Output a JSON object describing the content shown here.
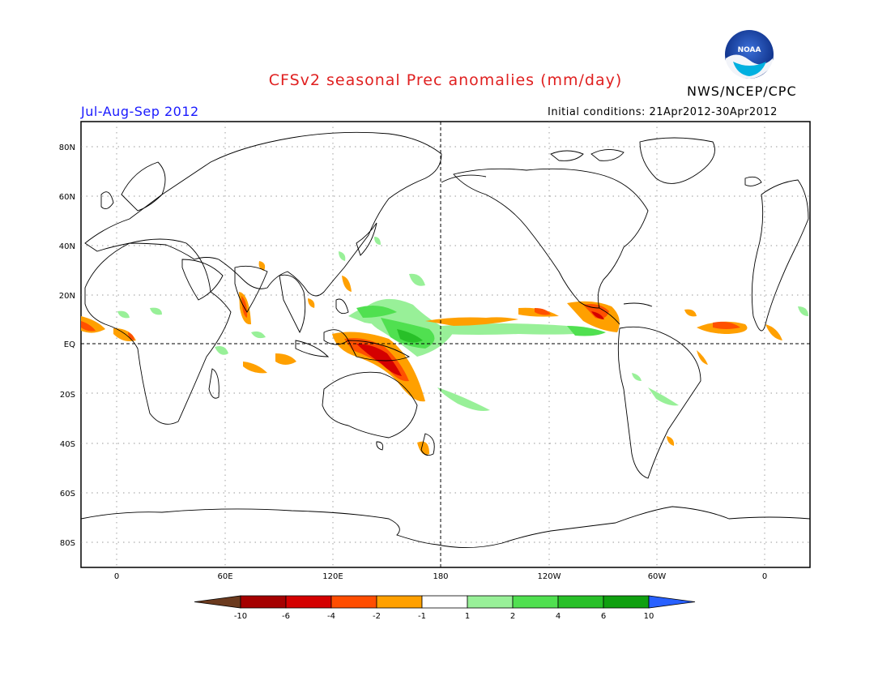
{
  "header": {
    "title": "CFSv2 seasonal Prec anomalies (mm/day)",
    "organization": "NWS/NCEP/CPC",
    "season": "Jul-Aug-Sep 2012",
    "initial_conditions": "Initial conditions: 21Apr2012-30Apr2012",
    "logo_text": "NOAA"
  },
  "map": {
    "lat_labels": [
      "80N",
      "60N",
      "40N",
      "20N",
      "EQ",
      "20S",
      "40S",
      "60S",
      "80S"
    ],
    "lon_labels": [
      "0",
      "60E",
      "120E",
      "180",
      "120W",
      "60W",
      "0"
    ]
  },
  "colorbar": {
    "levels": [
      "-10",
      "-6",
      "-4",
      "-2",
      "-1",
      "1",
      "2",
      "4",
      "6",
      "10"
    ],
    "colors": [
      "#6b3a1e",
      "#a50000",
      "#d40000",
      "#ff4d00",
      "#ffa000",
      "#ffffff",
      "#98f098",
      "#50e050",
      "#28c028",
      "#10a010",
      "#2860ff"
    ]
  },
  "anomaly_colors": {
    "dry_strong": "#b00000",
    "dry_medium": "#e03000",
    "dry_moderate": "#ff5000",
    "dry_light": "#ffa000",
    "wet_light": "#98f098",
    "wet_moderate": "#50e050",
    "wet_strong": "#28c028"
  }
}
